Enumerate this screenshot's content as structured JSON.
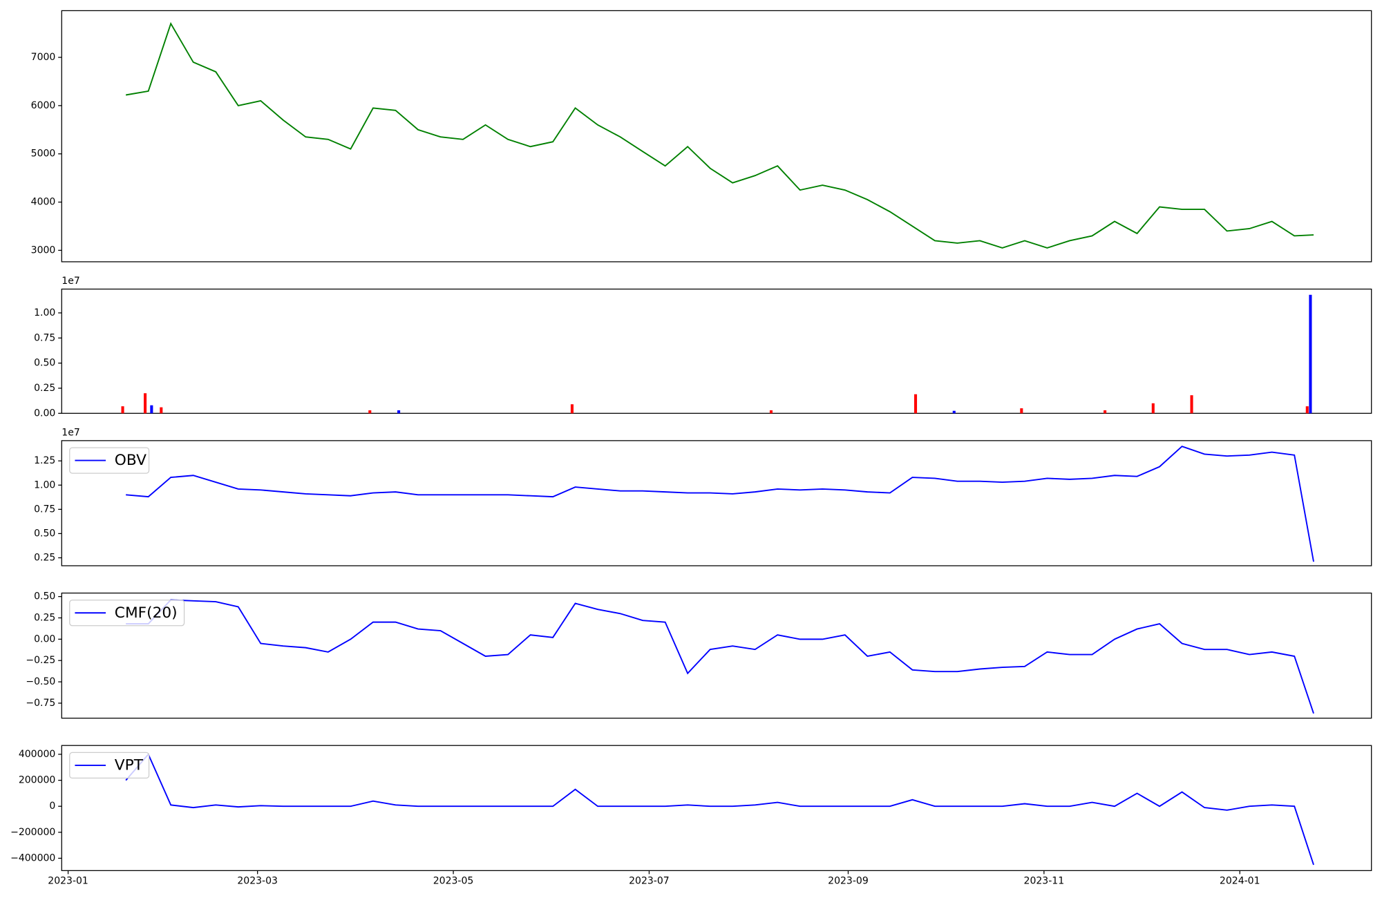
{
  "chart_data": [
    {
      "type": "line",
      "xlim": [
        "2022-12-30",
        "2024-02-11"
      ],
      "ylim": [
        2763,
        7968
      ],
      "yticks": [
        3000,
        4000,
        5000,
        6000,
        7000
      ],
      "x": [
        "2023-01-19",
        "2023-01-26",
        "2023-02-02",
        "2023-02-09",
        "2023-02-16",
        "2023-02-23",
        "2023-03-02",
        "2023-03-09",
        "2023-03-16",
        "2023-03-23",
        "2023-03-30",
        "2023-04-06",
        "2023-04-13",
        "2023-04-20",
        "2023-04-27",
        "2023-05-04",
        "2023-05-11",
        "2023-05-18",
        "2023-05-25",
        "2023-06-01",
        "2023-06-08",
        "2023-06-15",
        "2023-06-22",
        "2023-06-29",
        "2023-07-06",
        "2023-07-13",
        "2023-07-20",
        "2023-07-27",
        "2023-08-03",
        "2023-08-10",
        "2023-08-17",
        "2023-08-24",
        "2023-08-31",
        "2023-09-07",
        "2023-09-14",
        "2023-09-21",
        "2023-09-28",
        "2023-10-05",
        "2023-10-12",
        "2023-10-19",
        "2023-10-26",
        "2023-11-02",
        "2023-11-09",
        "2023-11-16",
        "2023-11-23",
        "2023-11-30",
        "2023-12-07",
        "2023-12-14",
        "2023-12-21",
        "2023-12-28",
        "2024-01-04",
        "2024-01-11",
        "2024-01-18",
        "2024-01-24"
      ],
      "series": [
        {
          "color": "#008000",
          "values": [
            6220,
            6300,
            7700,
            6900,
            6700,
            6000,
            6100,
            5700,
            5350,
            5300,
            5100,
            5950,
            5900,
            5500,
            5350,
            5300,
            5600,
            5300,
            5150,
            5250,
            5950,
            5600,
            5350,
            5050,
            4750,
            5150,
            4700,
            4400,
            4550,
            4750,
            4250,
            4350,
            4250,
            4050,
            3800,
            3500,
            3200,
            3150,
            3200,
            3050,
            3200,
            3050,
            3200,
            3300,
            3600,
            3350,
            3900,
            3850,
            3850,
            3400,
            3450,
            3600,
            3300,
            3320
          ]
        }
      ]
    },
    {
      "type": "bar",
      "xlim": [
        "2022-12-30",
        "2024-02-11"
      ],
      "ylim": [
        0,
        1.237
      ],
      "offset_text": "1e7",
      "yticks": [
        {
          "value": 0,
          "label": "0.00"
        },
        0.25,
        {
          "value": 0.5,
          "label": "0.50"
        },
        0.75,
        {
          "value": 1,
          "label": "1.00"
        }
      ],
      "series": [
        {
          "color": "red",
          "x": [
            "2023-01-18",
            "2023-01-25",
            "2023-01-30",
            "2023-04-05",
            "2023-06-07",
            "2023-08-08",
            "2023-09-22",
            "2023-10-25",
            "2023-11-20",
            "2023-12-05",
            "2023-12-17",
            "2024-01-22"
          ],
          "values": [
            0.07,
            0.2,
            0.06,
            0.03,
            0.09,
            0.03,
            0.19,
            0.05,
            0.03,
            0.1,
            0.18,
            0.07
          ]
        },
        {
          "color": "blue",
          "x": [
            "2023-01-27",
            "2023-04-14",
            "2023-10-04",
            "2024-01-23"
          ],
          "values": [
            0.08,
            0.03,
            0.025,
            1.18
          ]
        }
      ]
    },
    {
      "type": "line",
      "xlim": [
        "2022-12-30",
        "2024-02-11"
      ],
      "ylim": [
        0.168,
        1.459
      ],
      "offset_text": "1e7",
      "yticks": [
        0.25,
        {
          "value": 0.5,
          "label": "0.50"
        },
        0.75,
        {
          "value": 1,
          "label": "1.00"
        },
        1.25
      ],
      "x": [
        "2023-01-19",
        "2023-01-26",
        "2023-02-02",
        "2023-02-09",
        "2023-02-16",
        "2023-02-23",
        "2023-03-02",
        "2023-03-09",
        "2023-03-16",
        "2023-03-23",
        "2023-03-30",
        "2023-04-06",
        "2023-04-13",
        "2023-04-20",
        "2023-04-27",
        "2023-05-04",
        "2023-05-11",
        "2023-05-18",
        "2023-05-25",
        "2023-06-01",
        "2023-06-08",
        "2023-06-15",
        "2023-06-22",
        "2023-06-29",
        "2023-07-06",
        "2023-07-13",
        "2023-07-20",
        "2023-07-27",
        "2023-08-03",
        "2023-08-10",
        "2023-08-17",
        "2023-08-24",
        "2023-08-31",
        "2023-09-07",
        "2023-09-14",
        "2023-09-21",
        "2023-09-28",
        "2023-10-05",
        "2023-10-12",
        "2023-10-19",
        "2023-10-26",
        "2023-11-02",
        "2023-11-09",
        "2023-11-16",
        "2023-11-23",
        "2023-11-30",
        "2023-12-07",
        "2023-12-14",
        "2023-12-21",
        "2023-12-28",
        "2024-01-04",
        "2024-01-11",
        "2024-01-18",
        "2024-01-24"
      ],
      "series": [
        {
          "name": "OBV",
          "color": "blue",
          "values": [
            0.9,
            0.88,
            1.08,
            1.1,
            1.03,
            0.96,
            0.95,
            0.93,
            0.91,
            0.9,
            0.89,
            0.92,
            0.93,
            0.9,
            0.9,
            0.9,
            0.9,
            0.9,
            0.89,
            0.88,
            0.98,
            0.96,
            0.94,
            0.94,
            0.93,
            0.92,
            0.92,
            0.91,
            0.93,
            0.96,
            0.95,
            0.96,
            0.95,
            0.93,
            0.92,
            1.08,
            1.07,
            1.04,
            1.04,
            1.03,
            1.04,
            1.07,
            1.06,
            1.07,
            1.1,
            1.09,
            1.19,
            1.4,
            1.32,
            1.3,
            1.31,
            1.34,
            1.31,
            0.21
          ]
        }
      ]
    },
    {
      "type": "line",
      "xlim": [
        "2022-12-30",
        "2024-02-11"
      ],
      "ylim": [
        -0.926,
        0.541
      ],
      "yticks": [
        {
          "value": -0.75,
          "label": "−0.75"
        },
        {
          "value": -0.5,
          "label": "−0.50"
        },
        {
          "value": -0.25,
          "label": "−0.25"
        },
        {
          "value": 0,
          "label": "0.00"
        },
        0.25,
        {
          "value": 0.5,
          "label": "0.50"
        }
      ],
      "x": [
        "2023-01-19",
        "2023-01-26",
        "2023-02-02",
        "2023-02-09",
        "2023-02-16",
        "2023-02-23",
        "2023-03-02",
        "2023-03-09",
        "2023-03-16",
        "2023-03-23",
        "2023-03-30",
        "2023-04-06",
        "2023-04-13",
        "2023-04-20",
        "2023-04-27",
        "2023-05-04",
        "2023-05-11",
        "2023-05-18",
        "2023-05-25",
        "2023-06-01",
        "2023-06-08",
        "2023-06-15",
        "2023-06-22",
        "2023-06-29",
        "2023-07-06",
        "2023-07-13",
        "2023-07-20",
        "2023-07-27",
        "2023-08-03",
        "2023-08-10",
        "2023-08-17",
        "2023-08-24",
        "2023-08-31",
        "2023-09-07",
        "2023-09-14",
        "2023-09-21",
        "2023-09-28",
        "2023-10-05",
        "2023-10-12",
        "2023-10-19",
        "2023-10-26",
        "2023-11-02",
        "2023-11-09",
        "2023-11-16",
        "2023-11-23",
        "2023-11-30",
        "2023-12-07",
        "2023-12-14",
        "2023-12-21",
        "2023-12-28",
        "2024-01-04",
        "2024-01-11",
        "2024-01-18",
        "2024-01-24"
      ],
      "series": [
        {
          "name": "CMF(20)",
          "color": "blue",
          "values": [
            0.18,
            0.18,
            0.46,
            0.45,
            0.44,
            0.38,
            -0.05,
            -0.08,
            -0.1,
            -0.15,
            0.0,
            0.2,
            0.2,
            0.12,
            0.1,
            -0.05,
            -0.2,
            -0.18,
            0.05,
            0.02,
            0.42,
            0.35,
            0.3,
            0.22,
            0.2,
            -0.4,
            -0.12,
            -0.08,
            -0.12,
            0.05,
            0.0,
            0.0,
            0.05,
            -0.2,
            -0.15,
            -0.36,
            -0.38,
            -0.38,
            -0.35,
            -0.33,
            -0.32,
            -0.15,
            -0.18,
            -0.18,
            0.0,
            0.12,
            0.18,
            -0.05,
            -0.12,
            -0.12,
            -0.18,
            -0.15,
            -0.2,
            -0.87
          ]
        }
      ]
    },
    {
      "type": "line",
      "xlim": [
        "2022-12-30",
        "2024-02-11"
      ],
      "ylim": [
        -494900,
        467800
      ],
      "yticks": [
        {
          "value": -400000,
          "label": "−400000"
        },
        {
          "value": -200000,
          "label": "−200000"
        },
        0,
        200000,
        400000
      ],
      "xticks": [
        {
          "value": "2023-01-01",
          "label": "2023-01"
        },
        {
          "value": "2023-03-01",
          "label": "2023-03"
        },
        {
          "value": "2023-05-01",
          "label": "2023-05"
        },
        {
          "value": "2023-07-01",
          "label": "2023-07"
        },
        {
          "value": "2023-09-01",
          "label": "2023-09"
        },
        {
          "value": "2023-11-01",
          "label": "2023-11"
        },
        {
          "value": "2024-01-01",
          "label": "2024-01"
        }
      ],
      "x": [
        "2023-01-19",
        "2023-01-26",
        "2023-02-02",
        "2023-02-09",
        "2023-02-16",
        "2023-02-23",
        "2023-03-02",
        "2023-03-09",
        "2023-03-16",
        "2023-03-23",
        "2023-03-30",
        "2023-04-06",
        "2023-04-13",
        "2023-04-20",
        "2023-04-27",
        "2023-05-04",
        "2023-05-11",
        "2023-05-18",
        "2023-05-25",
        "2023-06-01",
        "2023-06-08",
        "2023-06-15",
        "2023-06-22",
        "2023-06-29",
        "2023-07-06",
        "2023-07-13",
        "2023-07-20",
        "2023-07-27",
        "2023-08-03",
        "2023-08-10",
        "2023-08-17",
        "2023-08-24",
        "2023-08-31",
        "2023-09-07",
        "2023-09-14",
        "2023-09-21",
        "2023-09-28",
        "2023-10-05",
        "2023-10-12",
        "2023-10-19",
        "2023-10-26",
        "2023-11-02",
        "2023-11-09",
        "2023-11-16",
        "2023-11-23",
        "2023-11-30",
        "2023-12-07",
        "2023-12-14",
        "2023-12-21",
        "2023-12-28",
        "2024-01-04",
        "2024-01-11",
        "2024-01-18",
        "2024-01-24"
      ],
      "series": [
        {
          "name": "VPT",
          "color": "blue",
          "values": [
            200000,
            400000,
            10000,
            -10000,
            10000,
            -5000,
            5000,
            0,
            0,
            0,
            0,
            40000,
            10000,
            0,
            0,
            0,
            0,
            0,
            0,
            0,
            130000,
            0,
            0,
            0,
            0,
            10000,
            0,
            0,
            10000,
            30000,
            0,
            0,
            0,
            0,
            0,
            50000,
            0,
            0,
            0,
            0,
            20000,
            0,
            0,
            30000,
            0,
            100000,
            0,
            110000,
            -10000,
            -30000,
            0,
            10000,
            0,
            -450000
          ]
        }
      ]
    }
  ]
}
